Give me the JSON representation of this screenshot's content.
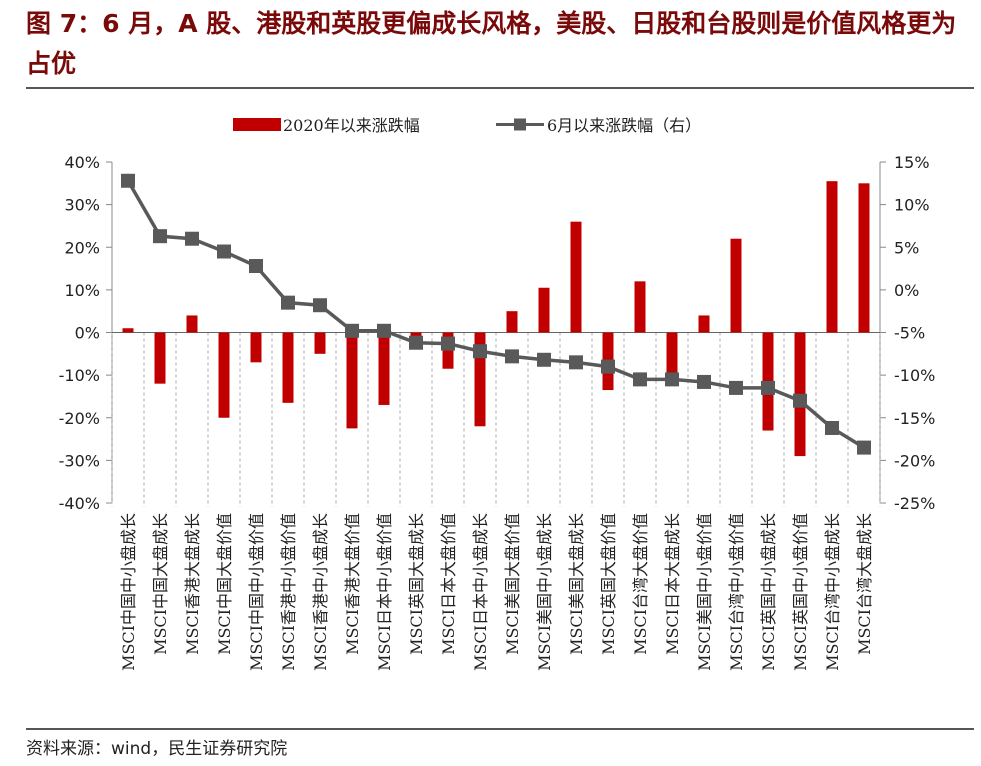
{
  "header": {
    "title": "图 7：6 月，A 股、港股和英股更偏成长风格，美股、日股和台股则是价值风格更为占优"
  },
  "footer": {
    "source": "资料来源：wind，民生证券研究院"
  },
  "colors": {
    "bar": "#c00000",
    "line": "#595959",
    "title": "#7a0a0a"
  },
  "chart_data": {
    "type": "bar",
    "legend_position": "top",
    "grid": false,
    "categories": [
      "MSCI中国中小盘成长",
      "MSCI中国大盘成长",
      "MSCI香港大盘成长",
      "MSCI中国大盘价值",
      "MSCI中国中小盘价值",
      "MSCI香港中小盘价值",
      "MSCI香港中小盘成长",
      "MSCI香港大盘价值",
      "MSCI日本中小盘价值",
      "MSCI英国大盘成长",
      "MSCI日本大盘价值",
      "MSCI日本中小盘成长",
      "MSCI美国大盘价值",
      "MSCI美国中小盘成长",
      "MSCI美国大盘成长",
      "MSCI英国大盘价值",
      "MSCI台湾大盘价值",
      "MSCI日本大盘成长",
      "MSCI美国中小盘价值",
      "MSCI台湾中小盘价值",
      "MSCI英国中小盘成长",
      "MSCI英国中小盘价值",
      "MSCI台湾中小盘成长",
      "MSCI台湾大盘成长"
    ],
    "series": [
      {
        "name": "2020年以来涨跌幅",
        "type": "bar",
        "axis": "left",
        "values": [
          1.0,
          -12.0,
          4.0,
          -20.0,
          -7.0,
          -16.5,
          -5.0,
          -22.5,
          -17.0,
          -2.0,
          -8.5,
          -22.0,
          5.0,
          10.5,
          26.0,
          -13.5,
          12.0,
          -10.0,
          4.0,
          22.0,
          -23.0,
          -29.0,
          35.5,
          35.0
        ]
      },
      {
        "name": "6月以来涨跌幅（右）",
        "type": "line",
        "axis": "right",
        "values": [
          12.8,
          6.3,
          6.0,
          4.5,
          2.8,
          -1.5,
          -1.8,
          -4.8,
          -4.8,
          -6.2,
          -6.3,
          -7.2,
          -7.8,
          -8.2,
          -8.5,
          -9.0,
          -10.5,
          -10.5,
          -10.8,
          -11.5,
          -11.5,
          -13.0,
          -16.2,
          -18.5
        ]
      }
    ],
    "y_left": {
      "ylim": [
        -40,
        40
      ],
      "ticks": [
        "40%",
        "30%",
        "20%",
        "10%",
        "0%",
        "-10%",
        "-20%",
        "-30%",
        "-40%"
      ]
    },
    "y_right": {
      "ylim": [
        -25,
        15
      ],
      "ticks": [
        "15%",
        "10%",
        "5%",
        "0%",
        "-5%",
        "-10%",
        "-15%",
        "-20%",
        "-25%"
      ]
    }
  }
}
